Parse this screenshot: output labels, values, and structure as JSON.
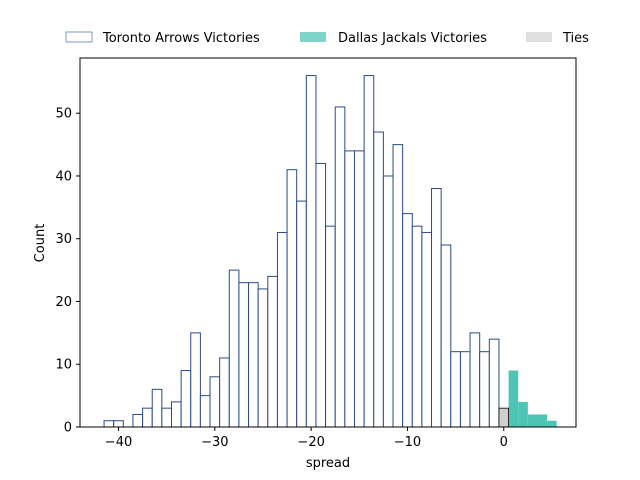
{
  "chart_data": {
    "type": "bar",
    "xlabel": "spread",
    "ylabel": "Count",
    "xlim": [
      -44,
      7.5
    ],
    "ylim": [
      0,
      58.8
    ],
    "xticks": [
      -40,
      -30,
      -20,
      -10,
      0
    ],
    "xtick_labels": [
      "−40",
      "−30",
      "−20",
      "−10",
      "0"
    ],
    "yticks": [
      0,
      10,
      20,
      30,
      40,
      50
    ],
    "ytick_labels": [
      "0",
      "10",
      "20",
      "30",
      "40",
      "50"
    ],
    "bin_width": 1,
    "legend_position": "top, outside plot, horizontal",
    "series": [
      {
        "name": "Toronto Arrows Victories",
        "style": "outline",
        "color": "#2a4a8a",
        "x": [
          -41,
          -40,
          -38,
          -37,
          -36,
          -35,
          -34,
          -33,
          -32,
          -31,
          -30,
          -29,
          -28,
          -27,
          -26,
          -25,
          -24,
          -23,
          -22,
          -21,
          -20,
          -19,
          -18,
          -17,
          -16,
          -15,
          -14,
          -13,
          -12,
          -11,
          -10,
          -9,
          -8,
          -7,
          -6,
          -5,
          -4,
          -3,
          -2,
          -1
        ],
        "values": [
          1,
          1,
          2,
          3,
          6,
          3,
          4,
          9,
          15,
          5,
          8,
          11,
          25,
          23,
          23,
          22,
          24,
          31,
          41,
          36,
          56,
          42,
          32,
          51,
          44,
          44,
          56,
          47,
          40,
          45,
          34,
          32,
          31,
          38,
          29,
          12,
          12,
          15,
          12,
          14
        ]
      },
      {
        "name": "Dallas Jackals Victories",
        "style": "filled",
        "color": "#4dc4b4",
        "x": [
          1,
          2,
          3,
          4,
          5
        ],
        "values": [
          9,
          4,
          2,
          2,
          1
        ]
      },
      {
        "name": "Ties",
        "style": "filled",
        "color": "#cfcfcf",
        "x": [
          0
        ],
        "values": [
          3
        ]
      }
    ]
  }
}
